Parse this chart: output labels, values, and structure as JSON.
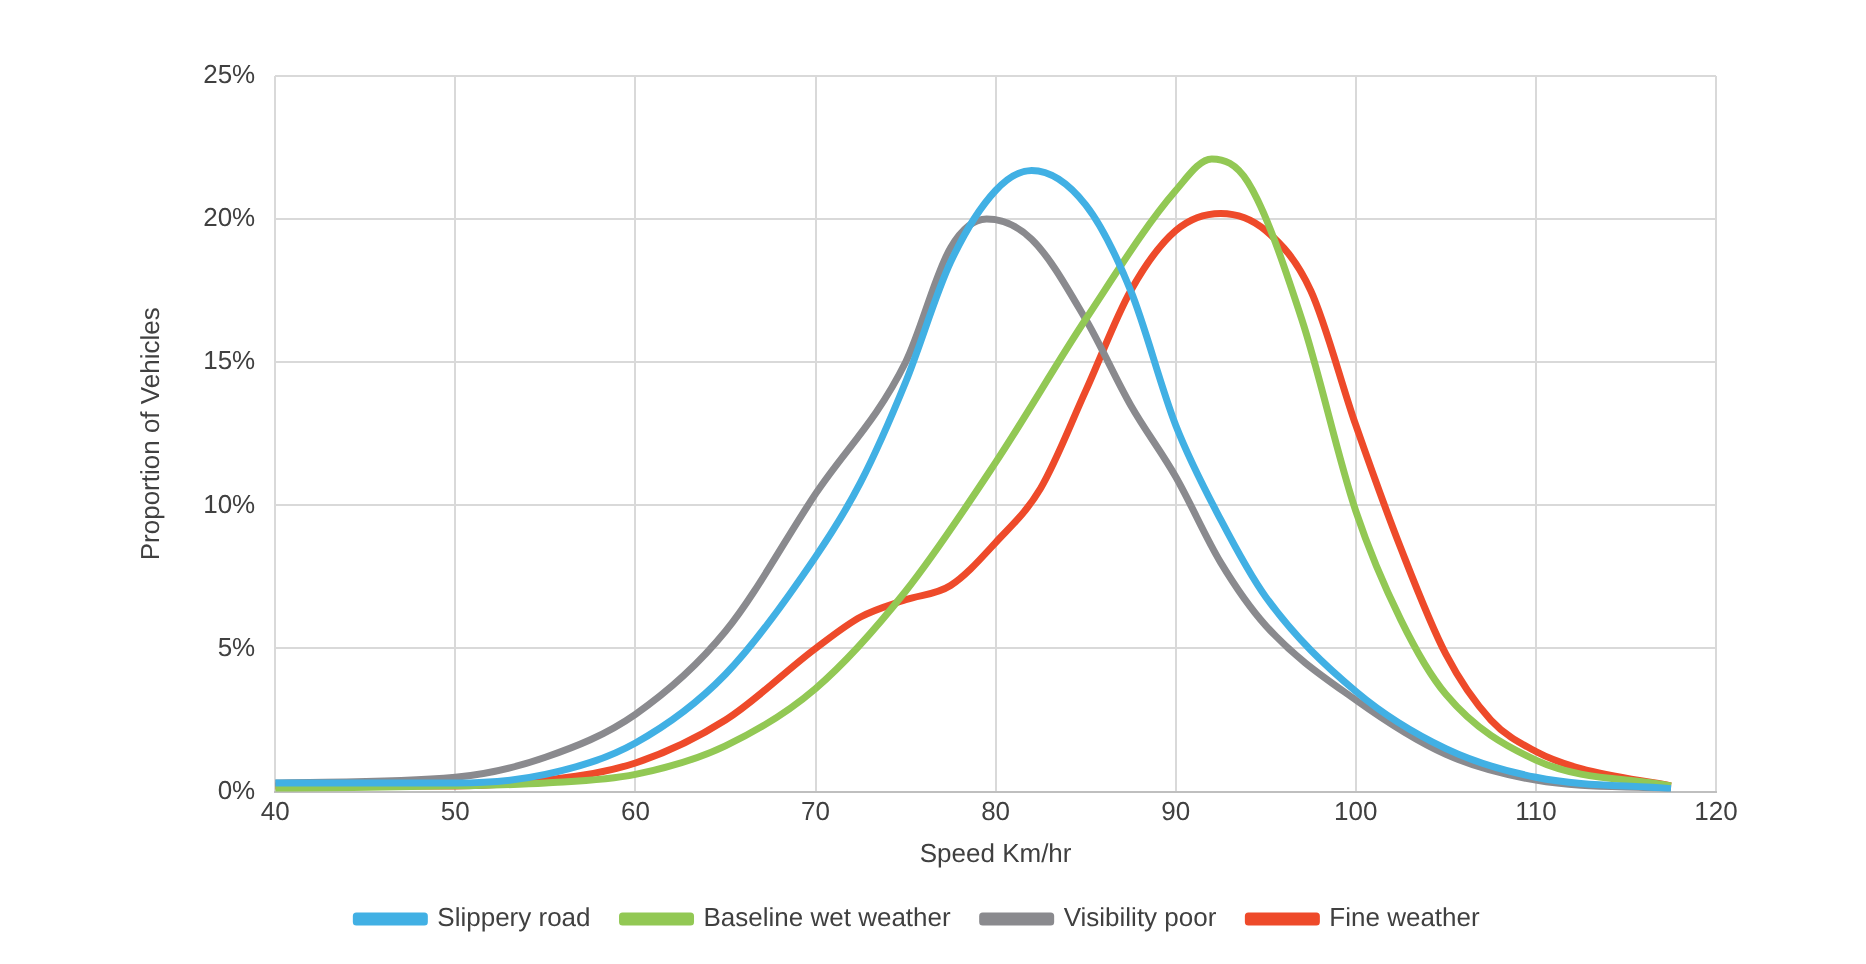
{
  "chart_data": {
    "type": "line",
    "xlabel": "Speed Km/hr",
    "ylabel": "Proportion of Vehicles",
    "xlim": [
      40,
      120
    ],
    "xticks": [
      40,
      50,
      60,
      70,
      80,
      90,
      100,
      110,
      120
    ],
    "ylim": [
      0,
      25
    ],
    "yticks": [
      {
        "value": 0,
        "label": "0%"
      },
      {
        "value": 5,
        "label": "5%"
      },
      {
        "value": 10,
        "label": "10%"
      },
      {
        "value": 15,
        "label": "15%"
      },
      {
        "value": 20,
        "label": "20%"
      },
      {
        "value": 25,
        "label": "25%"
      }
    ],
    "grid": true,
    "legend": "bottom",
    "marker": "none",
    "line_style": "solid",
    "series": [
      {
        "name": "Slippery road",
        "color": "#41b0e4",
        "x": [
          40,
          50,
          55,
          60,
          65,
          70,
          72.5,
          75,
          77.5,
          80,
          82,
          85,
          87.5,
          90,
          92.5,
          95,
          100,
          105,
          110,
          117.5
        ],
        "values": [
          0.3,
          0.3,
          0.6,
          1.7,
          4.1,
          8.2,
          10.8,
          14.3,
          18.5,
          21.0,
          21.7,
          20.5,
          17.5,
          12.8,
          9.5,
          6.8,
          3.5,
          1.5,
          0.5,
          0.1
        ]
      },
      {
        "name": "Baseline wet weather",
        "color": "#92c854",
        "x": [
          40,
          50,
          55,
          60,
          65,
          70,
          75,
          80,
          85,
          90,
          92,
          94,
          97,
          100,
          102.5,
          105,
          110,
          117.5
        ],
        "values": [
          0.1,
          0.2,
          0.3,
          0.6,
          1.6,
          3.6,
          7.0,
          11.5,
          16.5,
          21.0,
          22.1,
          21.3,
          16.5,
          9.8,
          6.0,
          3.4,
          1.1,
          0.2
        ]
      },
      {
        "name": "Visibility poor",
        "color": "#8a8a8e",
        "x": [
          40,
          50,
          55,
          60,
          65,
          70,
          75,
          77.5,
          79.5,
          82,
          85,
          87.5,
          90,
          92.5,
          95,
          100,
          105,
          110,
          117.5
        ],
        "values": [
          0.3,
          0.5,
          1.2,
          2.7,
          5.6,
          10.4,
          15.0,
          19.0,
          20.0,
          19.3,
          16.5,
          13.5,
          11.0,
          8.0,
          5.8,
          3.2,
          1.3,
          0.4,
          0.1
        ]
      },
      {
        "name": "Fine weather",
        "color": "#ee4a2a",
        "x": [
          40,
          50,
          55,
          60,
          65,
          70,
          72.5,
          75,
          77.5,
          80,
          82.5,
          85,
          87.5,
          90,
          92.5,
          95,
          97.5,
          100,
          102.5,
          105,
          107.5,
          110,
          112.5,
          117.5
        ],
        "values": [
          0.2,
          0.2,
          0.4,
          1.0,
          2.5,
          5.0,
          6.1,
          6.7,
          7.2,
          8.7,
          10.6,
          14.0,
          17.5,
          19.6,
          20.2,
          19.6,
          17.5,
          12.8,
          8.5,
          4.8,
          2.5,
          1.4,
          0.8,
          0.2
        ]
      }
    ]
  }
}
